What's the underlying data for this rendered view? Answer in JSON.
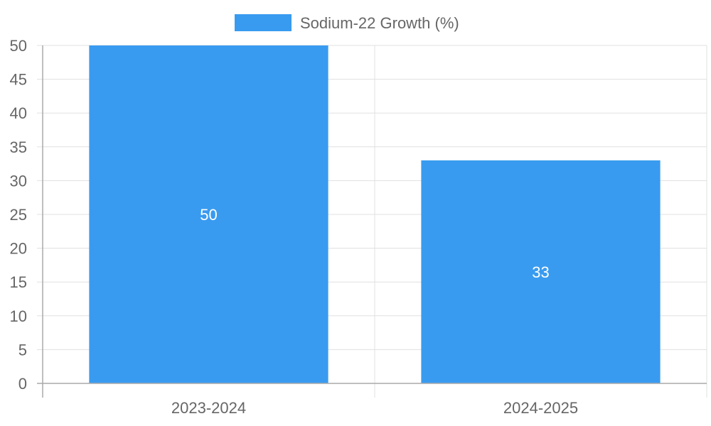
{
  "chart_data": {
    "type": "bar",
    "title": "",
    "xlabel": "",
    "ylabel": "",
    "categories": [
      "2023-2024",
      "2024-2025"
    ],
    "series": [
      {
        "name": "Sodium-22 Growth (%)",
        "values": [
          50,
          33
        ],
        "color": "#399bf0"
      }
    ],
    "ylim": [
      0,
      50
    ],
    "y_ticks": [
      "0",
      "5",
      "10",
      "15",
      "20",
      "25",
      "30",
      "35",
      "40",
      "45",
      "50"
    ],
    "data_labels": [
      "50",
      "33"
    ],
    "legend_position": "top-center",
    "grid": true
  }
}
